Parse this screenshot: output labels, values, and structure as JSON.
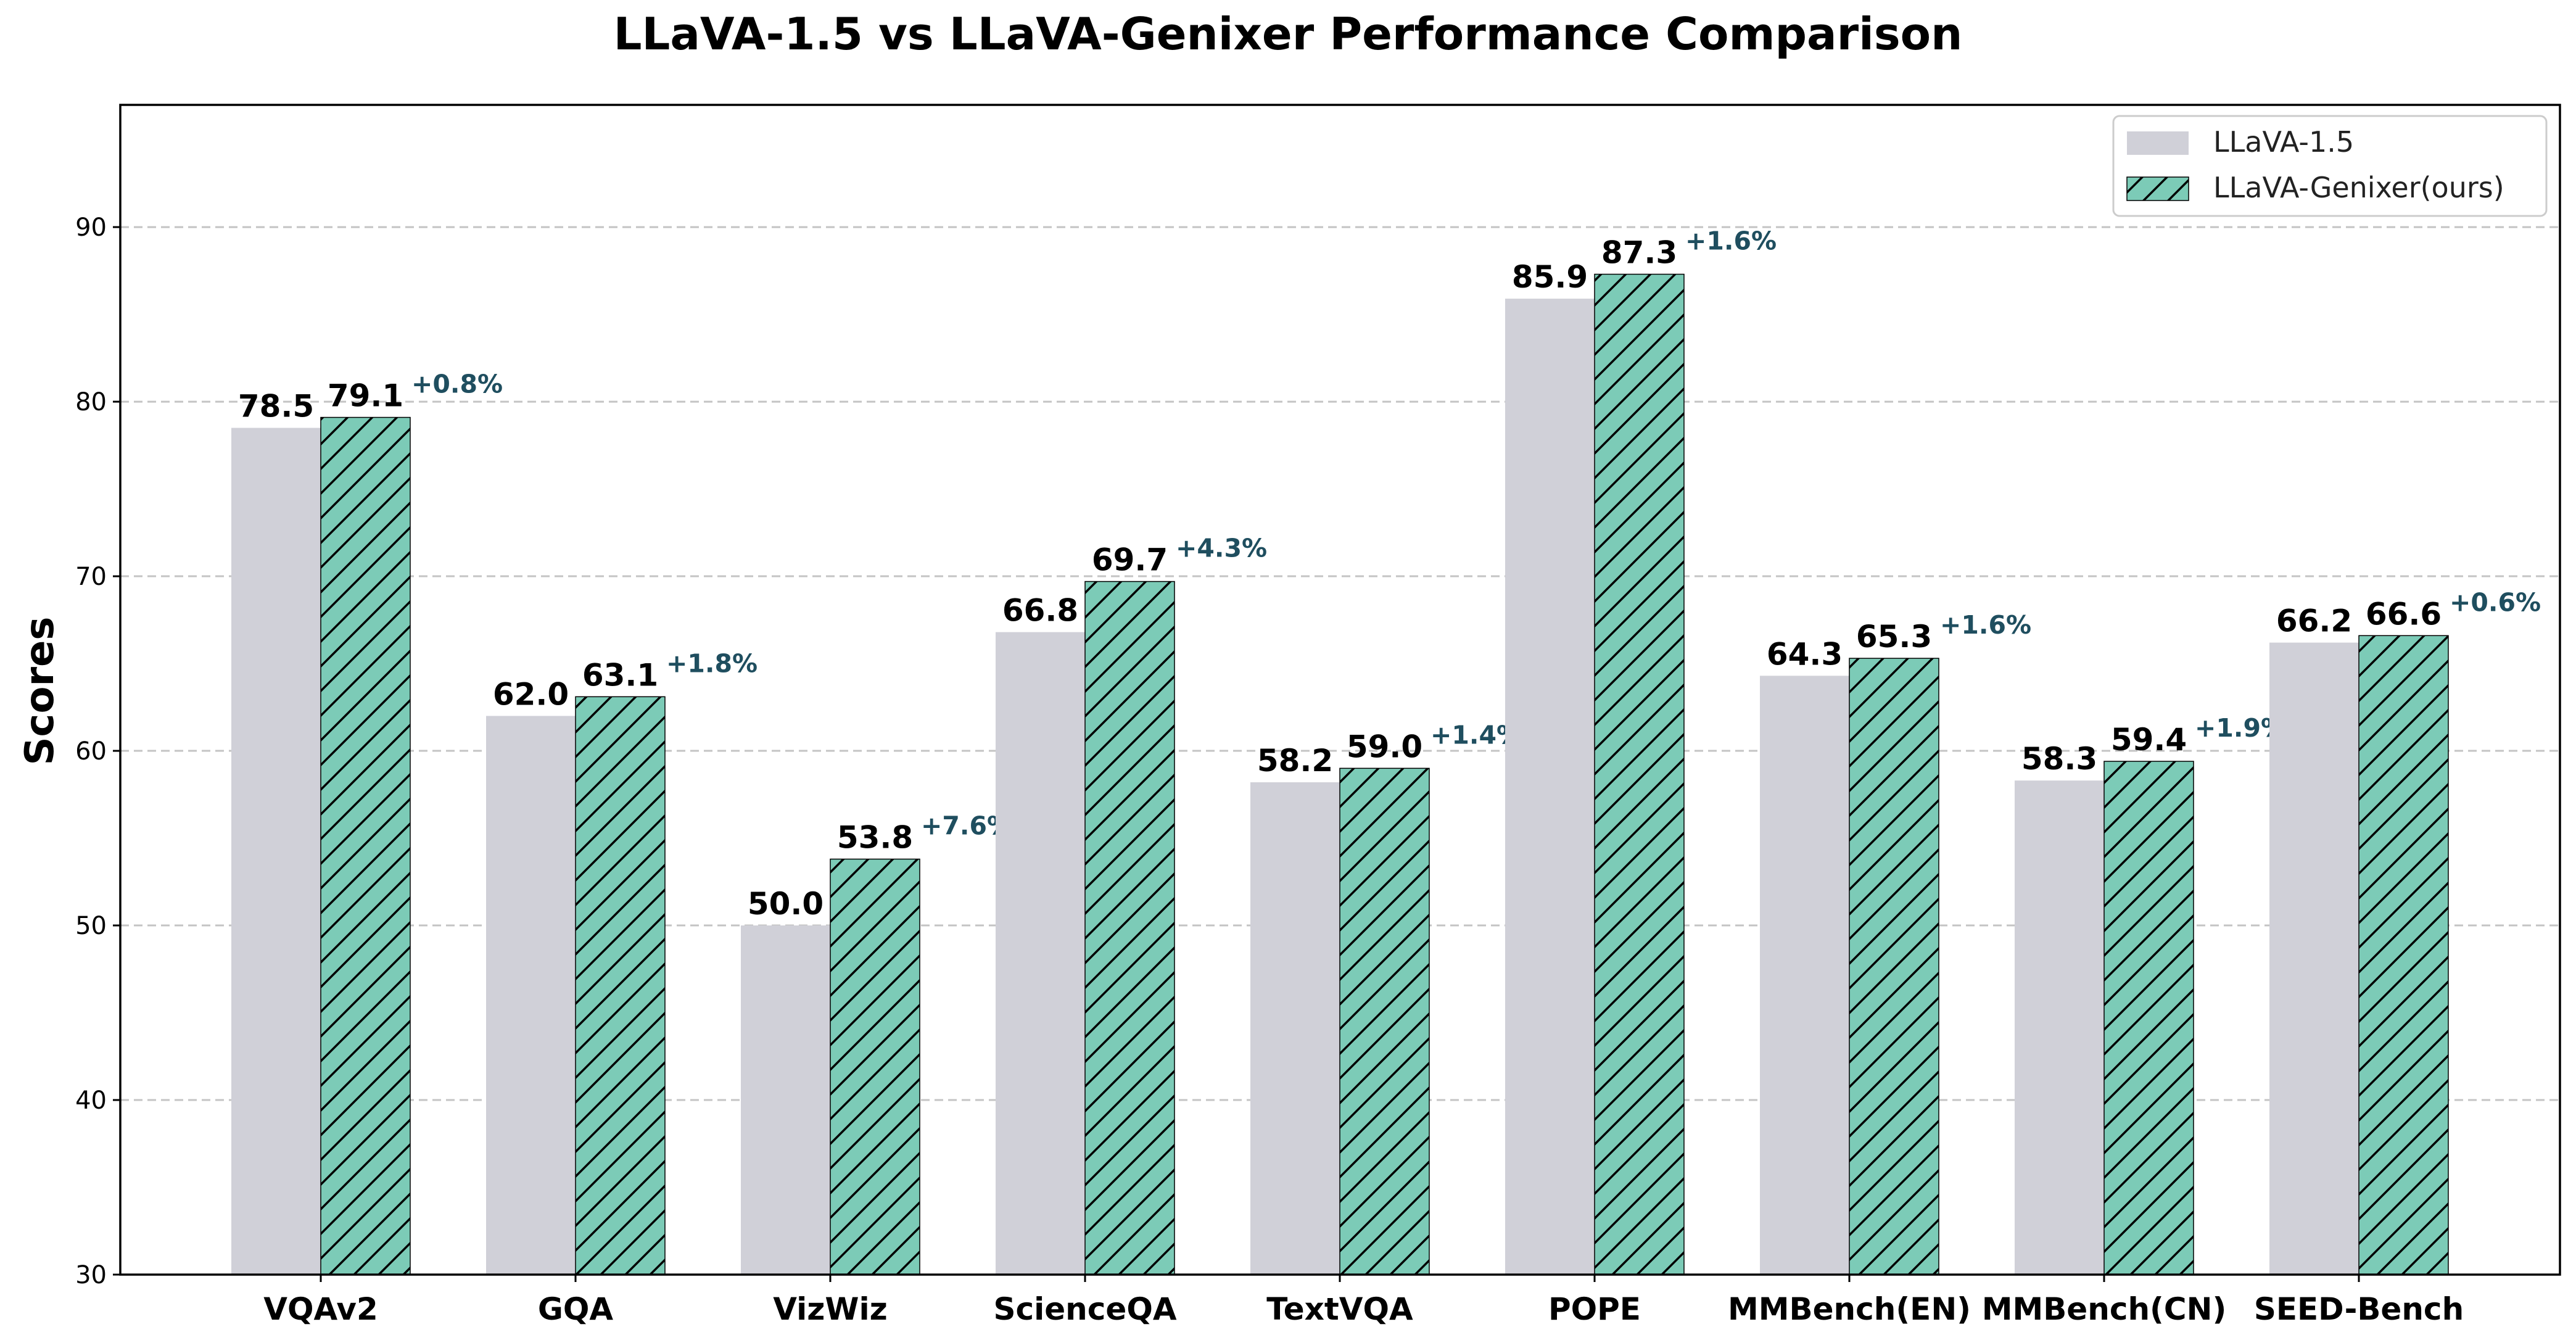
{
  "chart_data": {
    "type": "bar",
    "title": "LLaVA-1.5 vs LLaVA-Genixer Performance Comparison",
    "xlabel": "",
    "ylabel": "Scores",
    "ylim": [
      30,
      97
    ],
    "yticks": [
      30,
      40,
      50,
      60,
      70,
      80,
      90
    ],
    "grid": "y-dashed",
    "legend_position": "top-right",
    "categories": [
      "VQAv2",
      "GQA",
      "VizWiz",
      "ScienceQA",
      "TextVQA",
      "POPE",
      "MMBench(EN)",
      "MMBench(CN)",
      "SEED-Bench"
    ],
    "series": [
      {
        "name": "LLaVA-1.5",
        "color": "#d0d0d8",
        "hatch": "none",
        "values": [
          78.5,
          62.0,
          50.0,
          66.8,
          58.2,
          85.9,
          64.3,
          58.3,
          66.2
        ],
        "labels": [
          "78.5",
          "62.0",
          "50.0",
          "66.8",
          "58.2",
          "85.9",
          "64.3",
          "58.3",
          "66.2"
        ]
      },
      {
        "name": "LLaVA-Genixer(ours)",
        "color": "#7ccbb7",
        "hatch": "diagonal",
        "values": [
          79.1,
          63.1,
          53.8,
          69.7,
          59.0,
          87.3,
          65.3,
          59.4,
          66.6
        ],
        "labels": [
          "79.1",
          "63.1",
          "53.8",
          "69.7",
          "59.0",
          "87.3",
          "65.3",
          "59.4",
          "66.6"
        ]
      }
    ],
    "improvements": [
      "+0.8%",
      "+1.8%",
      "+7.6%",
      "+4.3%",
      "+1.4%",
      "+1.6%",
      "+1.6%",
      "+1.9%",
      "+0.6%"
    ],
    "improvement_color": "#1f4e5f"
  }
}
